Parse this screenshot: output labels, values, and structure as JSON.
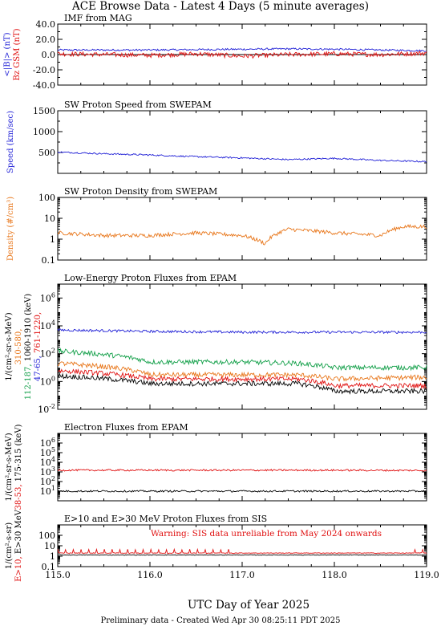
{
  "page": {
    "title": "ACE Browse Data - Latest 4 Days (5 minute averages)",
    "xlabel": "UTC Day of Year 2025",
    "footer": "Preliminary data - Created Wed Apr 30 08:25:11 PDT 2025",
    "x_ticks": [
      "115.0",
      "116.0",
      "117.0",
      "118.0",
      "119.0"
    ]
  },
  "chart_data": [
    {
      "type": "line",
      "title": "IMF from MAG",
      "ylabel_parts": [
        {
          "text": "<|B|> (nT)",
          "color": "#1f1fd6"
        },
        {
          "text": "Bz GSM (nT)",
          "color": "#e01010"
        }
      ],
      "ylim": [
        -40,
        40
      ],
      "y_scale": "linear",
      "y_ticks": [
        "40.0",
        "20.0",
        "0.0",
        "-20.0",
        "-40.0"
      ],
      "x_range": [
        115.0,
        119.0
      ],
      "series": [
        {
          "name": "<|B|>",
          "color": "#1f1fd6",
          "x": [
            115.0,
            115.5,
            116.0,
            116.5,
            117.0,
            117.5,
            118.0,
            118.5,
            119.0
          ],
          "y": [
            6,
            6,
            6,
            6.5,
            7,
            7.5,
            7,
            6,
            5
          ]
        },
        {
          "name": "Bz GSM",
          "color": "#e01010",
          "x": [
            115.0,
            115.5,
            116.0,
            116.5,
            117.0,
            117.5,
            118.0,
            118.5,
            119.0
          ],
          "y": [
            1,
            0,
            -1,
            1,
            -2,
            0,
            1,
            0,
            2
          ]
        }
      ]
    },
    {
      "type": "line",
      "title": "SW Proton Speed from SWEPAM",
      "ylabel_parts": [
        {
          "text": "Speed (km/sec)",
          "color": "#1f1fd6"
        }
      ],
      "ylim": [
        0,
        1500
      ],
      "y_scale": "linear",
      "y_ticks": [
        "1500",
        "1000",
        "500"
      ],
      "x_range": [
        115.0,
        119.0
      ],
      "series": [
        {
          "name": "Speed",
          "color": "#1f1fd6",
          "x": [
            115.0,
            115.5,
            116.0,
            116.5,
            117.0,
            117.5,
            118.0,
            118.5,
            119.0
          ],
          "y": [
            510,
            470,
            440,
            400,
            370,
            330,
            360,
            310,
            280
          ]
        }
      ]
    },
    {
      "type": "line",
      "title": "SW Proton Density from SWEPAM",
      "ylabel_parts": [
        {
          "text": "Density (#/cm³)",
          "color": "#e8761a"
        }
      ],
      "ylim": [
        0.1,
        100
      ],
      "y_scale": "log",
      "y_ticks": [
        "100",
        "10",
        "1",
        "0.1"
      ],
      "x_range": [
        115.0,
        119.0
      ],
      "series": [
        {
          "name": "Density",
          "color": "#e8761a",
          "x": [
            115.0,
            115.5,
            116.0,
            116.5,
            117.0,
            117.25,
            117.5,
            118.0,
            118.5,
            118.75,
            119.0
          ],
          "y": [
            2,
            1.5,
            1.5,
            2,
            1.5,
            0.6,
            3,
            2,
            1.5,
            4,
            4
          ]
        }
      ]
    },
    {
      "type": "line",
      "title": "Low-Energy Proton Fluxes from EPAM",
      "ylabel_main": "1/(cm²-sr-s-MeV)",
      "ylabel_channels": [
        [
          {
            "text": "310-580,",
            "color": "#e8761a"
          }
        ],
        [
          {
            "text": "112-187,",
            "color": "#14a04a"
          },
          {
            "text": "1060-1910 (keV)",
            "color": "#000000"
          }
        ],
        [
          {
            "text": "47-65,",
            "color": "#1f1fd6"
          },
          {
            "text": "761-1220,",
            "color": "#e01010"
          }
        ]
      ],
      "ylim": [
        0.01,
        10000000
      ],
      "y_scale": "log",
      "y_ticks": [
        "10^6",
        "10^4",
        "10^2",
        "10^0",
        "10^-2"
      ],
      "x_range": [
        115.0,
        119.0
      ],
      "series": [
        {
          "name": "47-65 keV",
          "color": "#1f1fd6",
          "x": [
            115.0,
            116.0,
            117.0,
            118.0,
            119.0
          ],
          "y": [
            5000,
            4000,
            3500,
            3500,
            3500
          ]
        },
        {
          "name": "112-187 keV",
          "color": "#14a04a",
          "x": [
            115.0,
            116.0,
            117.0,
            117.6,
            118.0,
            119.0
          ],
          "y": [
            150,
            25,
            25,
            20,
            10,
            10
          ]
        },
        {
          "name": "310-580 keV",
          "color": "#e8761a",
          "x": [
            115.0,
            116.0,
            117.0,
            117.6,
            118.0,
            119.0
          ],
          "y": [
            20,
            3,
            3,
            3,
            1.5,
            2
          ]
        },
        {
          "name": "761-1220 keV",
          "color": "#e01010",
          "x": [
            115.0,
            116.0,
            117.0,
            117.6,
            118.0,
            119.0
          ],
          "y": [
            6,
            1.5,
            1.5,
            1.5,
            0.5,
            0.5
          ]
        },
        {
          "name": "1060-1910 keV",
          "color": "#000000",
          "x": [
            115.0,
            116.0,
            117.0,
            117.6,
            118.0,
            119.0
          ],
          "y": [
            2.5,
            0.7,
            0.7,
            0.7,
            0.2,
            0.2
          ]
        }
      ]
    },
    {
      "type": "line",
      "title": "Electron Fluxes from EPAM",
      "ylabel_main": "1/(cm²-sr-s-MeV)",
      "ylabel_channels": [
        [
          {
            "text": "38-53,",
            "color": "#e01010"
          },
          {
            "text": "175-315 (keV)",
            "color": "#000000"
          }
        ]
      ],
      "ylim": [
        1,
        10000000
      ],
      "y_scale": "log",
      "y_ticks": [
        "10^6",
        "10^5",
        "10^4",
        "10^3",
        "10^2",
        "10^1"
      ],
      "x_range": [
        115.0,
        119.0
      ],
      "series": [
        {
          "name": "38-53 keV",
          "color": "#e01010",
          "x": [
            115.0,
            116.0,
            117.0,
            118.0,
            119.0
          ],
          "y": [
            1500,
            1500,
            1500,
            1500,
            1400
          ]
        },
        {
          "name": "175-315 keV",
          "color": "#000000",
          "x": [
            115.0,
            116.0,
            117.0,
            118.0,
            119.0
          ],
          "y": [
            10,
            10,
            10,
            10,
            10
          ]
        }
      ]
    },
    {
      "type": "line",
      "title": "E>10 and E>30 MeV Proton Fluxes from SIS",
      "ylabel_main": "1/(cm²-s-sr)",
      "ylabel_channels": [
        [
          {
            "text": "E>10,",
            "color": "#e01010"
          },
          {
            "text": "E>30 MeV",
            "color": "#000000"
          }
        ]
      ],
      "annotation": "Warning: SIS data unreliable from May 2024 onwards",
      "ylim": [
        0.1,
        1000
      ],
      "y_scale": "log",
      "y_ticks": [
        "100",
        "10",
        "1",
        "0.1"
      ],
      "x_range": [
        115.0,
        119.0
      ],
      "series": [
        {
          "name": "E>10 MeV",
          "color": "#e01010",
          "x": [
            115.0,
            116.0,
            117.0,
            118.0,
            119.0
          ],
          "y": [
            2,
            2,
            2,
            2,
            2
          ]
        },
        {
          "name": "E>30 MeV",
          "color": "#000000",
          "x": [
            115.0,
            116.0,
            117.0,
            118.0,
            119.0
          ],
          "y": [
            1.3,
            1.3,
            1.3,
            1.3,
            1.3
          ]
        }
      ]
    }
  ]
}
